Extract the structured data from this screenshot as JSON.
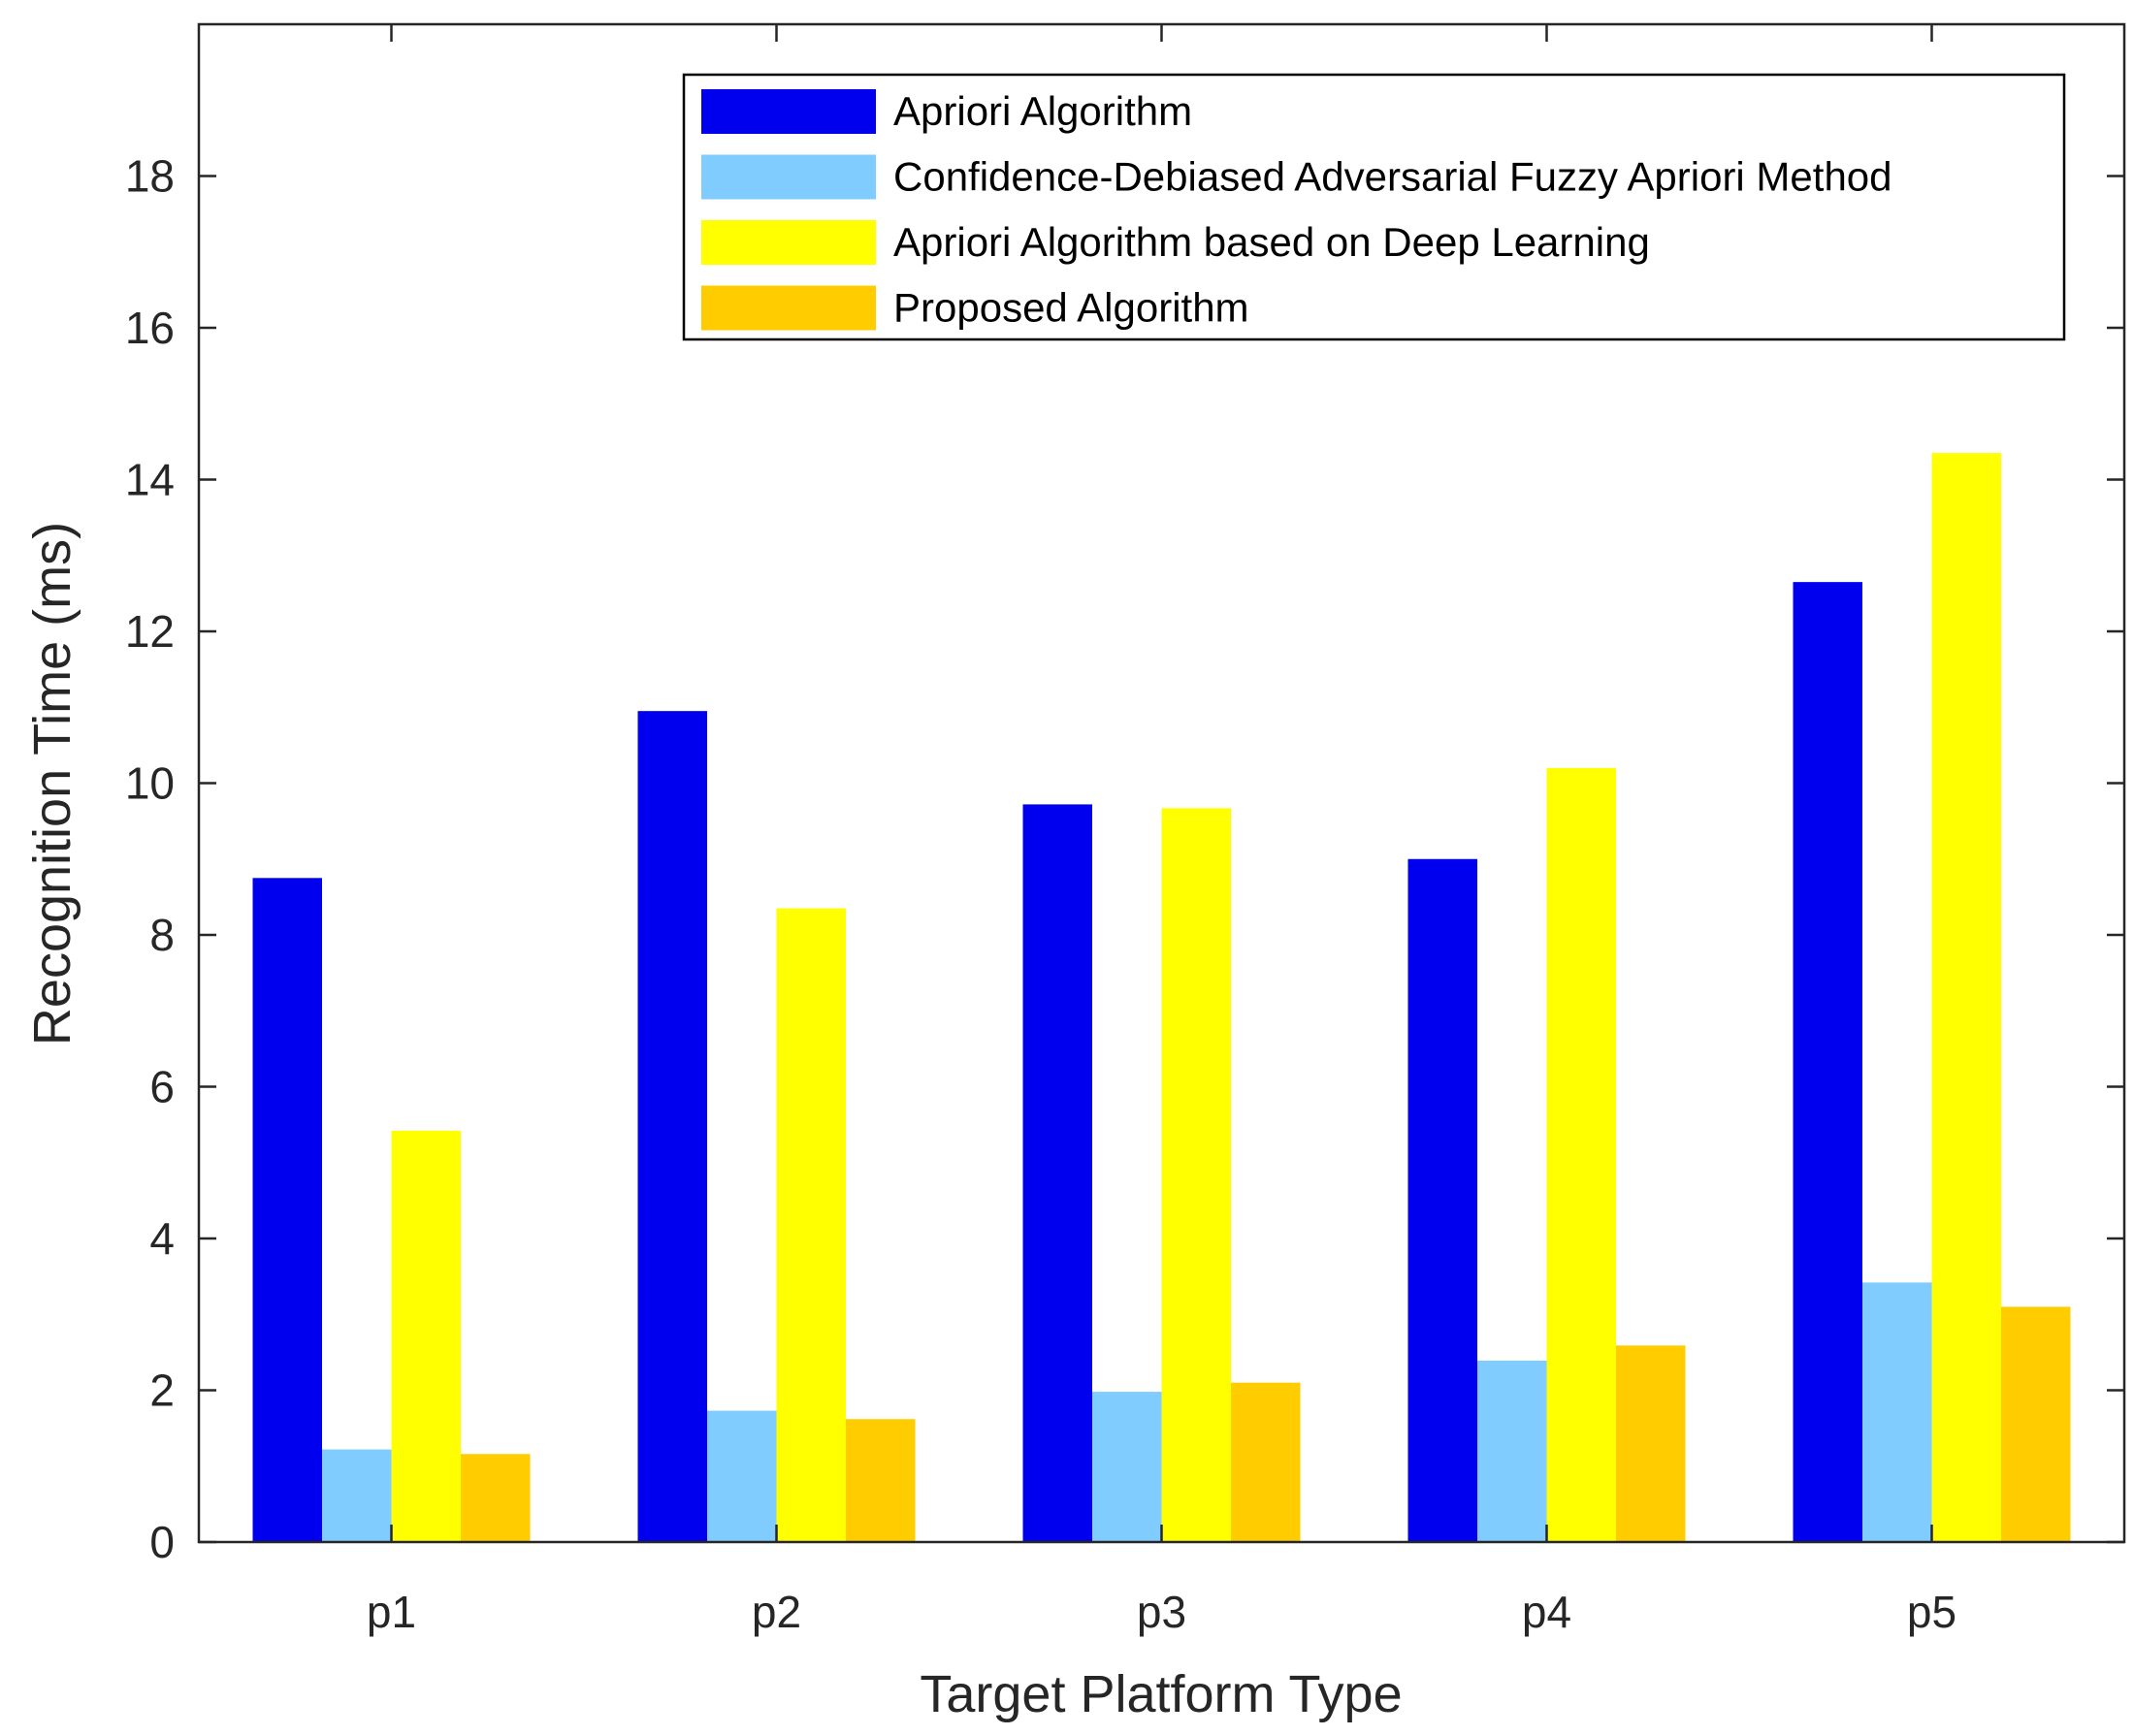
{
  "chart_data": {
    "type": "bar",
    "title": "",
    "xlabel": "Target Platform Type",
    "ylabel": "Recognition Time (ms)",
    "categories": [
      "p1",
      "p2",
      "p3",
      "p4",
      "p5"
    ],
    "ylim": [
      0,
      20
    ],
    "yticks": [
      "0",
      "2",
      "4",
      "6",
      "8",
      "10",
      "12",
      "14",
      "16",
      "18"
    ],
    "legend_position": "top-right",
    "grid": false,
    "series": [
      {
        "name": "Apriori Algorithm",
        "color": "#0000ee",
        "values": [
          8.75,
          10.95,
          9.72,
          9.0,
          12.65
        ]
      },
      {
        "name": "Confidence-Debiased Adversarial Fuzzy Apriori Method",
        "color": "#80ccff",
        "values": [
          1.22,
          1.73,
          1.98,
          2.39,
          3.42
        ]
      },
      {
        "name": "Apriori Algorithm based on Deep Learning",
        "color": "#ffff00",
        "values": [
          5.42,
          8.35,
          9.67,
          10.2,
          14.35
        ]
      },
      {
        "name": "Proposed Algorithm",
        "color": "#ffcc00",
        "values": [
          1.16,
          1.62,
          2.1,
          2.59,
          3.1
        ]
      }
    ]
  }
}
